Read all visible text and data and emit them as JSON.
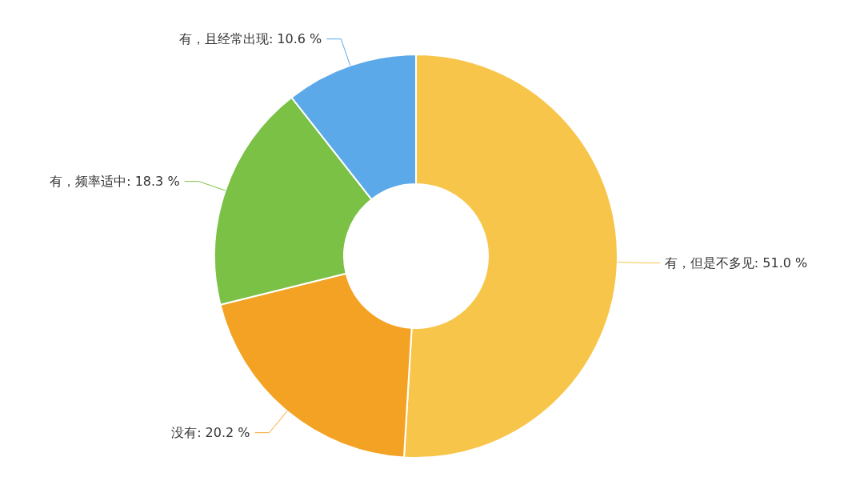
{
  "chart_data": {
    "type": "donut",
    "categories": [
      "有，但是不多见",
      "没有",
      "有，频率适中",
      "有，且经常出现"
    ],
    "values": [
      51.0,
      20.2,
      18.3,
      10.6
    ],
    "value_labels": [
      "51.0 %",
      "20.2 %",
      "18.3 %",
      "10.6 %"
    ],
    "colors": [
      "#f8c54b",
      "#f4a224",
      "#7bc145",
      "#5ba9e8"
    ],
    "legend": false
  }
}
